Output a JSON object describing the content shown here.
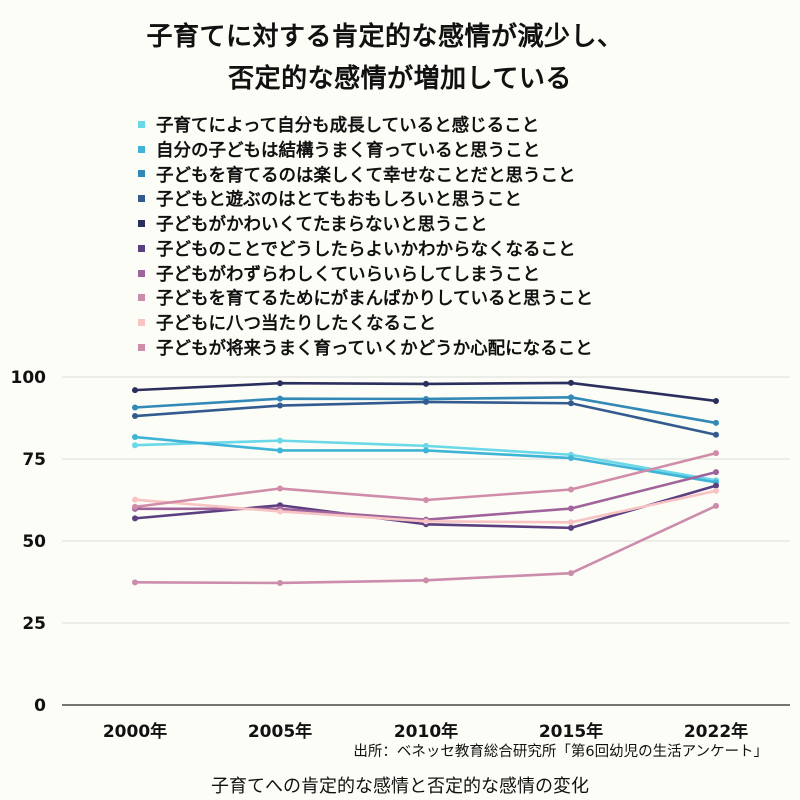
{
  "chart_data": {
    "type": "line",
    "title_lines": [
      "子育てに対する肯定的な感情が減少し、",
      "否定的な感情が増加している"
    ],
    "categories": [
      "2000年",
      "2005年",
      "2010年",
      "2015年",
      "2022年"
    ],
    "ylim": [
      0,
      100
    ],
    "yticks": [
      0,
      25,
      50,
      75,
      100
    ],
    "grid": true,
    "legend_position": "top",
    "series": [
      {
        "name": "子育てによって自分も成長していると感じること",
        "color": "#6ad8e8",
        "values": [
          79.2,
          80.6,
          79.0,
          76.3,
          68.5
        ]
      },
      {
        "name": "自分の子どもは結構うまく育っていると思うこと",
        "color": "#3fb4d6",
        "values": [
          81.7,
          77.6,
          77.6,
          75.3,
          67.9
        ]
      },
      {
        "name": "子どもを育てるのは楽しくて幸せなことだと思うこと",
        "color": "#3289b8",
        "values": [
          90.7,
          93.4,
          93.3,
          93.8,
          86.0
        ]
      },
      {
        "name": "子どもと遊ぶのはとてもおもしろいと思うこと",
        "color": "#335b8f",
        "values": [
          88.1,
          91.3,
          92.4,
          92.0,
          82.4
        ]
      },
      {
        "name": "子どもがかわいくてたまらないと思うこと",
        "color": "#2b2f5e",
        "values": [
          96.0,
          98.1,
          97.9,
          98.2,
          92.7
        ]
      },
      {
        "name": "子どものことでどうしたらよいかわからなくなること",
        "color": "#5c3f80",
        "values": [
          56.9,
          60.9,
          55.1,
          54.0,
          66.9
        ]
      },
      {
        "name": "子どもがわずらわしくていらいらしてしまうこと",
        "color": "#a0649c",
        "values": [
          59.8,
          59.8,
          56.5,
          59.9,
          71.0
        ]
      },
      {
        "name": "子どもを育てるためにがまんばかりしていると思うこと",
        "color": "#cc8cab",
        "values": [
          37.4,
          37.2,
          38.0,
          40.2,
          60.7
        ]
      },
      {
        "name": "子どもに八つ当たりしたくなること",
        "color": "#f7c3c3",
        "values": [
          62.6,
          59.0,
          56.0,
          55.7,
          65.3
        ]
      },
      {
        "name": "子どもが将来うまく育っていくかどうか心配になること",
        "color": "#d08ca8",
        "values": [
          60.4,
          66.0,
          62.5,
          65.7,
          76.8
        ]
      }
    ]
  },
  "source": "出所：ベネッセ教育総合研究所「第6回幼児の生活アンケート」",
  "caption": "子育てへの肯定的な感情と否定的な感情の変化"
}
